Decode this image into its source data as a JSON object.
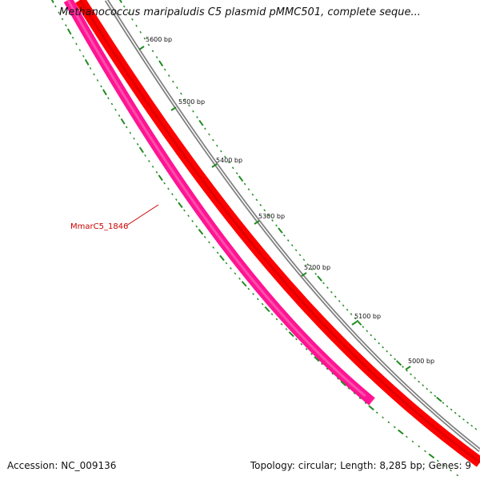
{
  "title": "Methanococcus maripaludis C5 plasmid pMMC501, complete seque...",
  "accession_text": "Accession: NC_009136",
  "topology_text": "Topology: circular; Length: 8,285 bp; Genes: 9",
  "gene_label": "MmarC5_1846",
  "tick_labels": [
    {
      "bp": 5600,
      "text": "5600 bp"
    },
    {
      "bp": 5500,
      "text": "5500 bp"
    },
    {
      "bp": 5400,
      "text": "5400 bp"
    },
    {
      "bp": 5300,
      "text": "5300 bp"
    },
    {
      "bp": 5200,
      "text": "5200 bp"
    },
    {
      "bp": 5100,
      "text": "5100 bp"
    },
    {
      "bp": 5000,
      "text": "5000 bp"
    }
  ],
  "colors": {
    "backbone": "#808080",
    "forward_feature": "#ff0000",
    "reverse_feature": "#ff1493",
    "ticks": "#228b22",
    "gene_label": "#cc0000"
  }
}
